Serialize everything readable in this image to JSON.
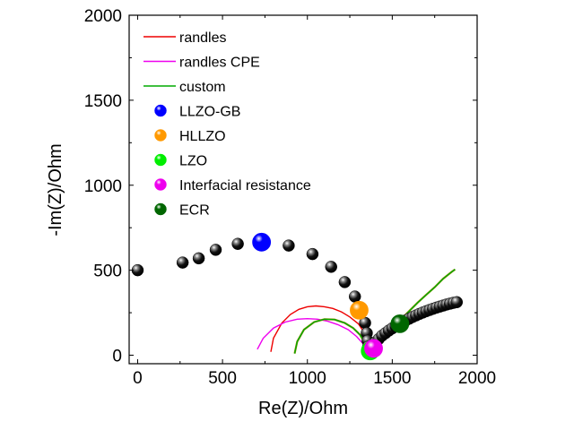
{
  "chart_data": {
    "type": "scatter",
    "xlabel": "Re(Z)/Ohm",
    "ylabel": "-Im(Z)/Ohm",
    "xlim": [
      -50,
      2000
    ],
    "ylim": [
      -50,
      2000
    ],
    "xticks": [
      0,
      500,
      1000,
      1500,
      2000
    ],
    "yticks": [
      0,
      500,
      1000,
      1500,
      2000
    ],
    "grid": false,
    "legend_position": "top-left",
    "series": [
      {
        "name": "",
        "type": "scatter",
        "color": "#000000",
        "x": [
          0,
          265,
          360,
          460,
          590,
          720,
          890,
          1030,
          1140,
          1220,
          1280,
          1320,
          1340,
          1350,
          1355,
          1358,
          1362,
          1370,
          1385,
          1400,
          1420,
          1440,
          1460,
          1480,
          1500,
          1520,
          1540,
          1560,
          1580,
          1600,
          1620,
          1640,
          1660,
          1680,
          1700,
          1720,
          1740,
          1760,
          1780,
          1800,
          1820,
          1840,
          1860,
          1880
        ],
        "y": [
          500,
          545,
          570,
          620,
          655,
          660,
          645,
          595,
          520,
          430,
          345,
          260,
          190,
          130,
          85,
          50,
          30,
          35,
          55,
          75,
          95,
          115,
          130,
          145,
          158,
          170,
          182,
          194,
          205,
          215,
          225,
          234,
          243,
          251,
          259,
          266,
          273,
          280,
          286,
          292,
          298,
          303,
          308,
          312
        ]
      },
      {
        "name": "randles",
        "type": "line",
        "color": "#ee0000",
        "x": [
          785,
          800,
          850,
          900,
          950,
          1000,
          1050,
          1100,
          1150,
          1200,
          1250,
          1300,
          1330,
          1350,
          1360
        ],
        "y": [
          20,
          100,
          190,
          240,
          270,
          285,
          290,
          285,
          275,
          255,
          225,
          185,
          140,
          80,
          20
        ]
      },
      {
        "name": "randles CPE",
        "type": "line",
        "color": "#ee00ee",
        "x": [
          705,
          740,
          800,
          870,
          940,
          1000,
          1060,
          1120,
          1180,
          1240,
          1290,
          1330,
          1360
        ],
        "y": [
          35,
          100,
          160,
          195,
          212,
          215,
          212,
          200,
          180,
          150,
          110,
          65,
          20
        ]
      },
      {
        "name": "custom",
        "type": "line",
        "color": "#00aa00",
        "overlay_color": "#aa8800",
        "x": [
          925,
          940,
          980,
          1040,
          1100,
          1160,
          1220,
          1270,
          1310,
          1340,
          1370,
          1380,
          1400,
          1450,
          1500,
          1550,
          1600,
          1650,
          1700,
          1750,
          1800,
          1850,
          1870
        ],
        "y": [
          10,
          80,
          150,
          195,
          212,
          210,
          190,
          160,
          120,
          70,
          20,
          25,
          50,
          105,
          160,
          210,
          260,
          310,
          355,
          400,
          450,
          490,
          505
        ]
      },
      {
        "name": "LLZO-GB",
        "type": "marker",
        "color": "#0000ff",
        "x": [
          730
        ],
        "y": [
          665
        ]
      },
      {
        "name": "HLLZO",
        "type": "marker",
        "color": "#ff9900",
        "x": [
          1305
        ],
        "y": [
          265
        ]
      },
      {
        "name": "LZO",
        "type": "marker",
        "color": "#00ee00",
        "x": [
          1370
        ],
        "y": [
          25
        ]
      },
      {
        "name": "Interfacial resistance",
        "type": "marker",
        "color": "#ee00ee",
        "x": [
          1390
        ],
        "y": [
          40
        ]
      },
      {
        "name": "ECR",
        "type": "marker",
        "color": "#006600",
        "x": [
          1545
        ],
        "y": [
          185
        ]
      }
    ]
  }
}
